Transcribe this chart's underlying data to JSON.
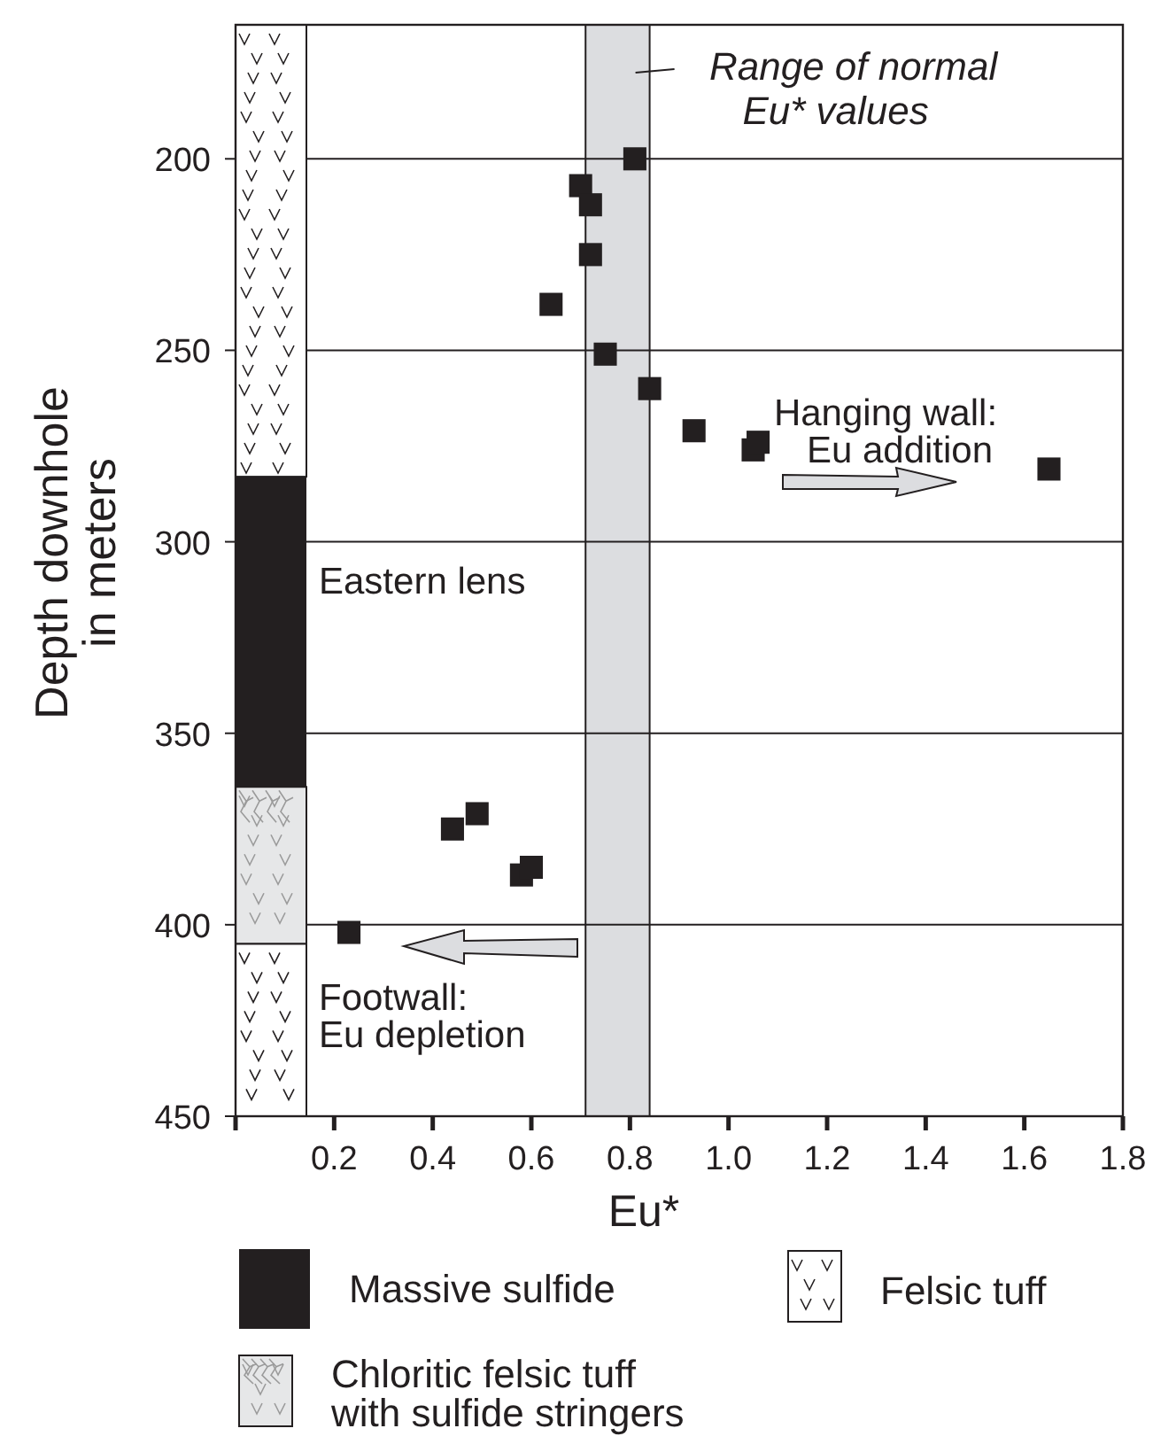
{
  "chart_data": {
    "type": "scatter",
    "xlabel": "Eu*",
    "ylabel": "Depth downhole in meters",
    "xlim": [
      0,
      1.8
    ],
    "xticks": [
      {
        "value": 0,
        "label": null
      },
      0.2,
      0.4,
      0.6,
      0.8,
      {
        "value": 1,
        "label": "1.0"
      },
      1.2,
      1.4,
      1.6,
      1.8
    ],
    "ylim": [
      450,
      165
    ],
    "yticks": [
      200,
      250,
      300,
      350,
      400,
      450
    ],
    "grid": "y",
    "marker": "square",
    "legend": "bottom",
    "series": [
      {
        "color": "#231f20",
        "x": [
          0.81,
          0.7,
          0.72,
          0.72,
          0.64,
          0.75,
          0.84,
          0.93,
          1.05,
          1.06,
          1.65,
          0.44,
          0.49,
          0.58,
          0.6,
          0.23
        ],
        "values": [
          200,
          207,
          212,
          225,
          238,
          251,
          260,
          271,
          276,
          274,
          281,
          375,
          371,
          387,
          385,
          402
        ]
      }
    ],
    "bands": [
      {
        "axis": "x",
        "from": 0.71,
        "to": 0.84,
        "label": "Range of normal Eu* values",
        "color": "#dcdde0"
      },
      {
        "axis": "y",
        "from": 283,
        "to": 364,
        "label": "Massive sulfide",
        "color": "#231f20"
      },
      {
        "axis": "y",
        "from": 165,
        "to": 283,
        "label": "Felsic tuff",
        "color": "#ffffff"
      },
      {
        "axis": "y",
        "from": 364,
        "to": 405,
        "label": "Chloritic felsic tuff with sulfide stringers",
        "color": "#e6e7e8"
      },
      {
        "axis": "y",
        "from": 405,
        "to": 450,
        "label": null,
        "color": "#ffffff"
      }
    ],
    "annotations": [
      "Hanging wall: Eu addition",
      "Eastern lens",
      "Footwall: Eu depletion"
    ]
  }
}
